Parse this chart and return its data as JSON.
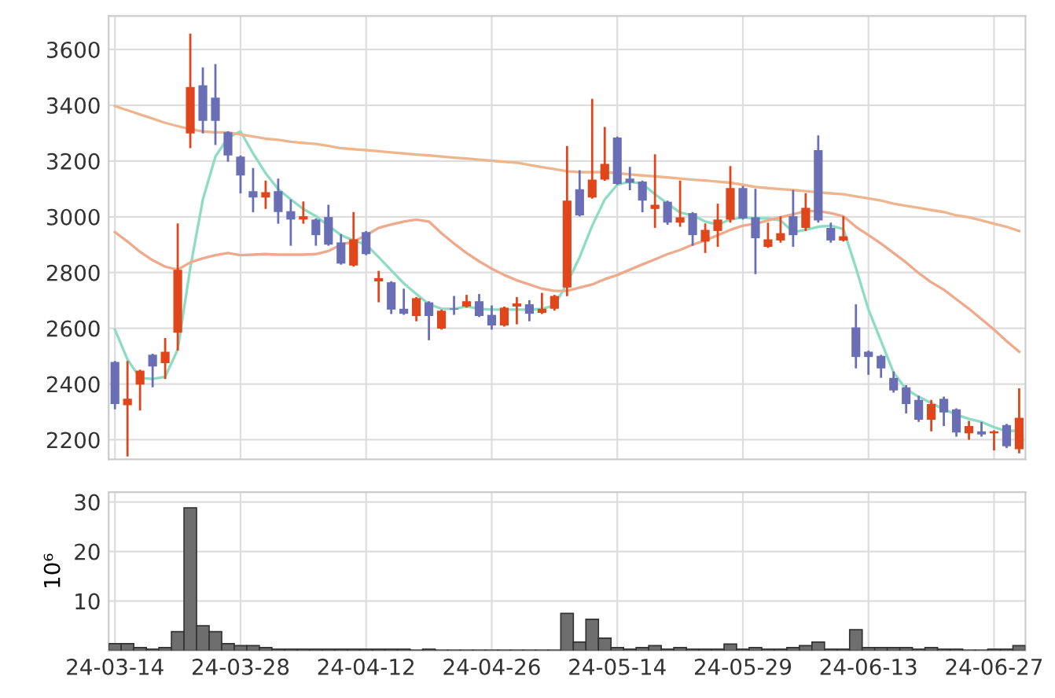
{
  "chart_data": [
    {
      "type": "candlestick",
      "categories": [
        null,
        null,
        null,
        null,
        null,
        null,
        null,
        null,
        null,
        null,
        null,
        null,
        null,
        null,
        null,
        null,
        null,
        null,
        null,
        null,
        null,
        null,
        null,
        null,
        null,
        null,
        null,
        null,
        null,
        null,
        null,
        null,
        null,
        null,
        null,
        null,
        null,
        null,
        null,
        null,
        null,
        null,
        null,
        null,
        null,
        null,
        null,
        null,
        null,
        null,
        null,
        null,
        null,
        null,
        null,
        null,
        null,
        null,
        null,
        null,
        null,
        null,
        null,
        null,
        null,
        null,
        null,
        null,
        null,
        null,
        null,
        null,
        null
      ],
      "ohlc": [
        [
          2479,
          2479,
          2313,
          2328
        ],
        [
          2324,
          2479,
          2144,
          2347
        ],
        [
          2398,
          2448,
          2309,
          2448
        ],
        [
          2505,
          2505,
          2392,
          2463
        ],
        [
          2475,
          2561,
          2422,
          2516
        ],
        [
          2584,
          2972,
          2524,
          2810
        ],
        [
          3299,
          3653,
          3250,
          3465
        ],
        [
          3472,
          3532,
          3303,
          3344
        ],
        [
          3427,
          3544,
          3261,
          3344
        ],
        [
          3303,
          3303,
          3201,
          3220
        ],
        [
          3216,
          3216,
          3088,
          3148
        ],
        [
          3092,
          3171,
          3020,
          3069
        ],
        [
          3069,
          3126,
          3032,
          3088
        ],
        [
          3092,
          3133,
          2979,
          3017
        ],
        [
          3020,
          3058,
          2900,
          2990
        ],
        [
          2990,
          3051,
          2979,
          3002
        ],
        [
          2990,
          2990,
          2900,
          2934
        ],
        [
          2999,
          3039,
          2900,
          2900
        ],
        [
          2908,
          2934,
          2832,
          2832
        ],
        [
          2825,
          3013,
          2825,
          2919
        ],
        [
          2945,
          2945,
          2866,
          2866
        ],
        [
          2768,
          2802,
          2697,
          2780
        ],
        [
          2765,
          2765,
          2655,
          2667
        ],
        [
          2670,
          2738,
          2652,
          2652
        ],
        [
          2644,
          2708,
          2629,
          2708
        ],
        [
          2693,
          2693,
          2561,
          2644
        ],
        [
          2599,
          2663,
          2599,
          2663
        ],
        [
          2670,
          2712,
          2652,
          2667
        ],
        [
          2678,
          2716,
          2678,
          2697
        ],
        [
          2697,
          2719,
          2644,
          2644
        ],
        [
          2648,
          2678,
          2599,
          2610
        ],
        [
          2610,
          2674,
          2610,
          2674
        ],
        [
          2678,
          2708,
          2618,
          2689
        ],
        [
          2686,
          2697,
          2629,
          2652
        ],
        [
          2655,
          2723,
          2655,
          2670
        ],
        [
          2670,
          2716,
          2667,
          2716
        ],
        [
          2746,
          3250,
          2719,
          3058
        ],
        [
          3099,
          3163,
          3005,
          3005
        ],
        [
          3069,
          3419,
          3069,
          3133
        ],
        [
          3133,
          3318,
          3133,
          3190
        ],
        [
          3284,
          3284,
          3118,
          3118
        ],
        [
          3137,
          3175,
          3099,
          3122
        ],
        [
          3126,
          3126,
          3020,
          3058
        ],
        [
          3028,
          3220,
          2964,
          3043
        ],
        [
          3054,
          3054,
          2975,
          2979
        ],
        [
          2979,
          3126,
          2968,
          2998
        ],
        [
          3013,
          3013,
          2900,
          2934
        ],
        [
          2911,
          2972,
          2874,
          2953
        ],
        [
          2949,
          3043,
          2896,
          2990
        ],
        [
          2990,
          3178,
          2983,
          3103
        ],
        [
          3103,
          3107,
          2994,
          2994
        ],
        [
          2998,
          3096,
          2798,
          2923
        ],
        [
          2892,
          2975,
          2892,
          2919
        ],
        [
          2915,
          2998,
          2911,
          2941
        ],
        [
          3002,
          3092,
          2896,
          2934
        ],
        [
          2960,
          3081,
          2953,
          3032
        ],
        [
          3239,
          3288,
          2983,
          2987
        ],
        [
          2960,
          2975,
          2911,
          2915
        ],
        [
          2915,
          2998,
          2915,
          2930
        ],
        [
          2603,
          2682,
          2460,
          2497
        ],
        [
          2516,
          2516,
          2437,
          2497
        ],
        [
          2501,
          2501,
          2426,
          2456
        ],
        [
          2422,
          2441,
          2373,
          2377
        ],
        [
          2388,
          2392,
          2298,
          2328
        ],
        [
          2343,
          2354,
          2268,
          2272
        ],
        [
          2272,
          2339,
          2234,
          2328
        ],
        [
          2347,
          2351,
          2253,
          2298
        ],
        [
          2309,
          2309,
          2215,
          2226
        ],
        [
          2223,
          2264,
          2204,
          2249
        ],
        [
          2230,
          2260,
          2215,
          2219
        ],
        [
          2223,
          2230,
          2166,
          2230
        ],
        [
          2253,
          2253,
          2174,
          2177
        ],
        [
          2166,
          2381,
          2155,
          2279
        ]
      ],
      "colors": [
        "#6a6fb5",
        "#e0461b",
        "#e0461b",
        "#6a6fb5",
        "#e0461b",
        "#e0461b",
        "#e0461b",
        "#6a6fb5",
        "#6a6fb5",
        "#6a6fb5",
        "#6a6fb5",
        "#6a6fb5",
        "#e0461b",
        "#6a6fb5",
        "#6a6fb5",
        "#e0461b",
        "#6a6fb5",
        "#6a6fb5",
        "#6a6fb5",
        "#e0461b",
        "#6a6fb5",
        "#e0461b",
        "#6a6fb5",
        "#6a6fb5",
        "#e0461b",
        "#6a6fb5",
        "#e0461b",
        "#6a6fb5",
        "#e0461b",
        "#6a6fb5",
        "#6a6fb5",
        "#e0461b",
        "#e0461b",
        "#6a6fb5",
        "#e0461b",
        "#e0461b",
        "#e0461b",
        "#6a6fb5",
        "#e0461b",
        "#e0461b",
        "#6a6fb5",
        "#6a6fb5",
        "#6a6fb5",
        "#e0461b",
        "#6a6fb5",
        "#e0461b",
        "#6a6fb5",
        "#e0461b",
        "#e0461b",
        "#e0461b",
        "#6a6fb5",
        "#6a6fb5",
        "#e0461b",
        "#e0461b",
        "#6a6fb5",
        "#e0461b",
        "#6a6fb5",
        "#6a6fb5",
        "#e0461b",
        "#6a6fb5",
        "#6a6fb5",
        "#6a6fb5",
        "#6a6fb5",
        "#6a6fb5",
        "#6a6fb5",
        "#e0461b",
        "#6a6fb5",
        "#6a6fb5",
        "#e0461b",
        "#6a6fb5",
        "#e0461b",
        "#6a6fb5",
        "#e0461b"
      ],
      "series": [
        {
          "type": "line",
          "color": "#8fdcc4",
          "values": [
            2595,
            2488,
            2422,
            2418,
            2426,
            2524,
            2817,
            3062,
            3216,
            3284,
            3306,
            3227,
            3156,
            3099,
            3062,
            3028,
            3002,
            2968,
            2934,
            2915,
            2900,
            2855,
            2808,
            2761,
            2723,
            2686,
            2670,
            2670,
            2678,
            2670,
            2667,
            2667,
            2667,
            2667,
            2670,
            2682,
            2761,
            2855,
            2968,
            3062,
            3115,
            3126,
            3118,
            3081,
            3047,
            3015,
            3005,
            2983,
            2972,
            2990,
            2998,
            2994,
            2994,
            2987,
            2945,
            2953,
            2964,
            2968,
            2956,
            2817,
            2667,
            2554,
            2441,
            2381,
            2354,
            2332,
            2309,
            2290,
            2275,
            2264,
            2245,
            2230,
            2234
          ]
        },
        {
          "type": "line",
          "color": "#eeaa8c",
          "values": [
            2945,
            2911,
            2874,
            2844,
            2821,
            2810,
            2836,
            2851,
            2862,
            2870,
            2862,
            2864,
            2866,
            2864,
            2864,
            2864,
            2866,
            2877,
            2900,
            2911,
            2934,
            2960,
            2972,
            2983,
            2990,
            2983,
            2941,
            2904,
            2870,
            2840,
            2814,
            2791,
            2772,
            2757,
            2742,
            2734,
            2734,
            2746,
            2757,
            2776,
            2791,
            2810,
            2829,
            2847,
            2866,
            2881,
            2900,
            2915,
            2934,
            2953,
            2968,
            2975,
            2987,
            2998,
            3009,
            3020,
            3020,
            3013,
            3002,
            2964,
            2934,
            2904,
            2870,
            2836,
            2798,
            2765,
            2738,
            2704,
            2670,
            2633,
            2595,
            2554,
            2516
          ]
        },
        {
          "type": "line",
          "color": "#eeb68e",
          "values": [
            3397,
            3382,
            3367,
            3352,
            3337,
            3325,
            3314,
            3306,
            3303,
            3303,
            3295,
            3288,
            3280,
            3276,
            3269,
            3265,
            3261,
            3254,
            3246,
            3242,
            3239,
            3235,
            3231,
            3227,
            3223,
            3220,
            3216,
            3212,
            3209,
            3205,
            3201,
            3197,
            3194,
            3186,
            3178,
            3171,
            3163,
            3160,
            3160,
            3160,
            3156,
            3152,
            3148,
            3145,
            3141,
            3137,
            3133,
            3130,
            3126,
            3122,
            3115,
            3107,
            3103,
            3099,
            3096,
            3092,
            3088,
            3084,
            3081,
            3073,
            3066,
            3058,
            3047,
            3039,
            3032,
            3024,
            3017,
            3005,
            2998,
            2987,
            2975,
            2964,
            2949
          ]
        }
      ],
      "ylim": [
        2130,
        3720
      ],
      "yticks": [
        2200,
        2400,
        2600,
        2800,
        3000,
        3200,
        3400,
        3600
      ],
      "grid": true,
      "tick_labels": "y"
    },
    {
      "type": "bar",
      "categories": [
        "24-03-14",
        null,
        null,
        null,
        null,
        null,
        null,
        null,
        null,
        null,
        "24-03-28",
        null,
        null,
        null,
        null,
        null,
        null,
        null,
        null,
        null,
        "24-04-12",
        null,
        null,
        null,
        null,
        null,
        null,
        null,
        null,
        null,
        "24-04-26",
        null,
        null,
        null,
        null,
        null,
        null,
        null,
        null,
        null,
        "24-05-14",
        null,
        null,
        null,
        null,
        null,
        null,
        null,
        null,
        null,
        "24-05-29",
        null,
        null,
        null,
        null,
        null,
        null,
        null,
        null,
        null,
        "24-06-13",
        null,
        null,
        null,
        null,
        null,
        null,
        null,
        null,
        null,
        "24-06-27",
        null,
        null
      ],
      "values": [
        1.4,
        1.4,
        0.6,
        0.3,
        0.6,
        3.8,
        28.8,
        5.0,
        3.8,
        1.4,
        1.0,
        1.0,
        0.6,
        0.3,
        0.3,
        0.3,
        0.3,
        0.3,
        0.3,
        0.3,
        0.3,
        0.3,
        0.3,
        0.3,
        0.1,
        0.3,
        0.1,
        0.1,
        0.1,
        0.1,
        0.1,
        0.1,
        0.1,
        0.1,
        0.1,
        0.1,
        7.5,
        1.7,
        6.3,
        2.5,
        0.6,
        0.3,
        0.6,
        1.0,
        0.3,
        0.6,
        0.3,
        0.3,
        0.3,
        1.3,
        0.3,
        0.6,
        0.3,
        0.3,
        0.6,
        1.0,
        1.7,
        0.3,
        0.3,
        4.2,
        0.6,
        0.6,
        0.6,
        0.6,
        0.3,
        0.6,
        0.3,
        0.3,
        0.1,
        0.1,
        0.3,
        0.3,
        1.0
      ],
      "color": "#6e6e6e",
      "ylabel": "10⁶",
      "ylim": [
        0,
        32
      ],
      "yticks": [
        10,
        20,
        30
      ],
      "grid": true
    }
  ]
}
